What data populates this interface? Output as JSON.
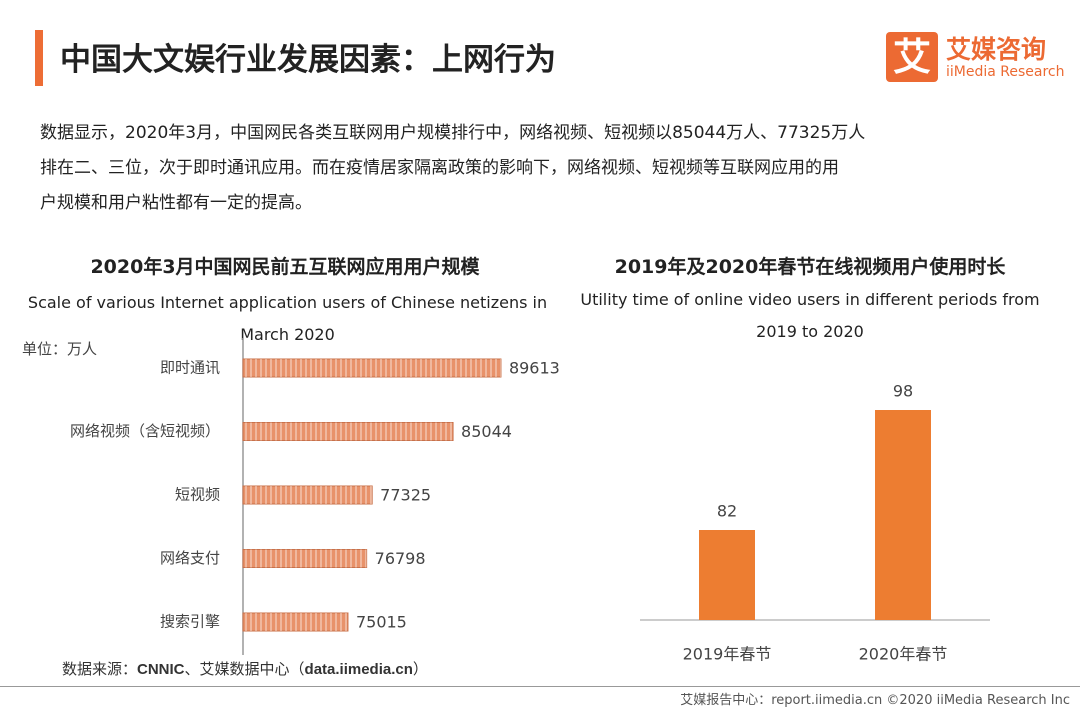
{
  "header": {
    "title": "中国大文娱行业发展因素：上网行为",
    "logo_mark": "艾",
    "logo_cn": "艾媒咨询",
    "logo_en": "iiMedia Research"
  },
  "description": [
    "数据显示，2020年3月，中国网民各类互联网用户规模排行中，网络视频、短视频以85044万人、77325万人",
    "排在二、三位，次于即时通讯应用。而在疫情居家隔离政策的影响下，网络视频、短视频等互联网应用的用",
    "户规模和用户粘性都有一定的提高。"
  ],
  "chart_data": [
    {
      "type": "bar",
      "orientation": "horizontal",
      "title": "2020年3月中国网民前五互联网应用用户规模",
      "subtitle": "Scale of various Internet application users of Chinese netizens in March 2020",
      "unit": "单位：万人",
      "categories": [
        "即时通讯",
        "网络视频（含短视频）",
        "短视频",
        "网络支付",
        "搜索引擎"
      ],
      "values": [
        89613,
        85044,
        77325,
        76798,
        75015
      ],
      "color": "#e8926a",
      "xlim": [
        65000,
        90000
      ]
    },
    {
      "type": "bar",
      "orientation": "vertical",
      "title": "2019年及2020年春节在线视频用户使用时长",
      "subtitle": "Utility time of online video users in different periods from 2019 to 2020",
      "categories": [
        "2019年春节",
        "2020年春节"
      ],
      "values": [
        82,
        98
      ],
      "color": "#ed7d31",
      "ylim": [
        70,
        100
      ]
    }
  ],
  "source": {
    "label": "数据来源：",
    "org": "CNNIC",
    "middle": "、艾媒数据中心（",
    "site": "data.iimedia.cn",
    "end": "）"
  },
  "footer": "艾媒报告中心：report.iimedia.cn  ©2020  iiMedia Research  Inc"
}
